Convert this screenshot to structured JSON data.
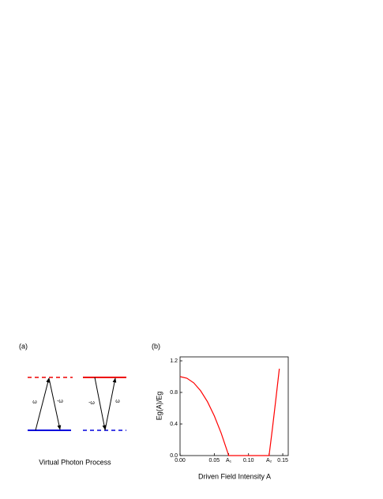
{
  "diagram": {
    "panel_label": "(a)",
    "arrow_labels": [
      "ω",
      "-ω",
      "-ω",
      "ω"
    ],
    "caption": "Virtual Photon Process"
  },
  "chart_data": {
    "type": "line",
    "panel_label": "(b)",
    "x_label": "Driven Field Intensity A",
    "y_label": "Eg(A)/Eg",
    "x": [
      0,
      0.01,
      0.02,
      0.03,
      0.04,
      0.05,
      0.06,
      0.07,
      0.071,
      0.08,
      0.09,
      0.1,
      0.11,
      0.12,
      0.13,
      0.135,
      0.14,
      0.145
    ],
    "series": [
      {
        "color": "#ff0000",
        "values": [
          1,
          0.98,
          0.921,
          0.821,
          0.683,
          0.504,
          0.286,
          0.028,
          0,
          0,
          0,
          0,
          0,
          0,
          0,
          0.35,
          0.72,
          1.1
        ]
      }
    ],
    "xlim": [
      0,
      0.158
    ],
    "ylim": [
      0,
      1.25
    ],
    "xticks": [
      {
        "value": 0,
        "label": "0.00"
      },
      0.05,
      {
        "value": 0.071,
        "label": "A₁"
      },
      {
        "value": 0.1,
        "label": "0.10"
      },
      {
        "value": 0.13,
        "label": "A₂"
      },
      0.15
    ],
    "yticks": [
      {
        "value": 0,
        "label": "0.0"
      },
      0.4,
      0.8,
      1.2
    ]
  }
}
